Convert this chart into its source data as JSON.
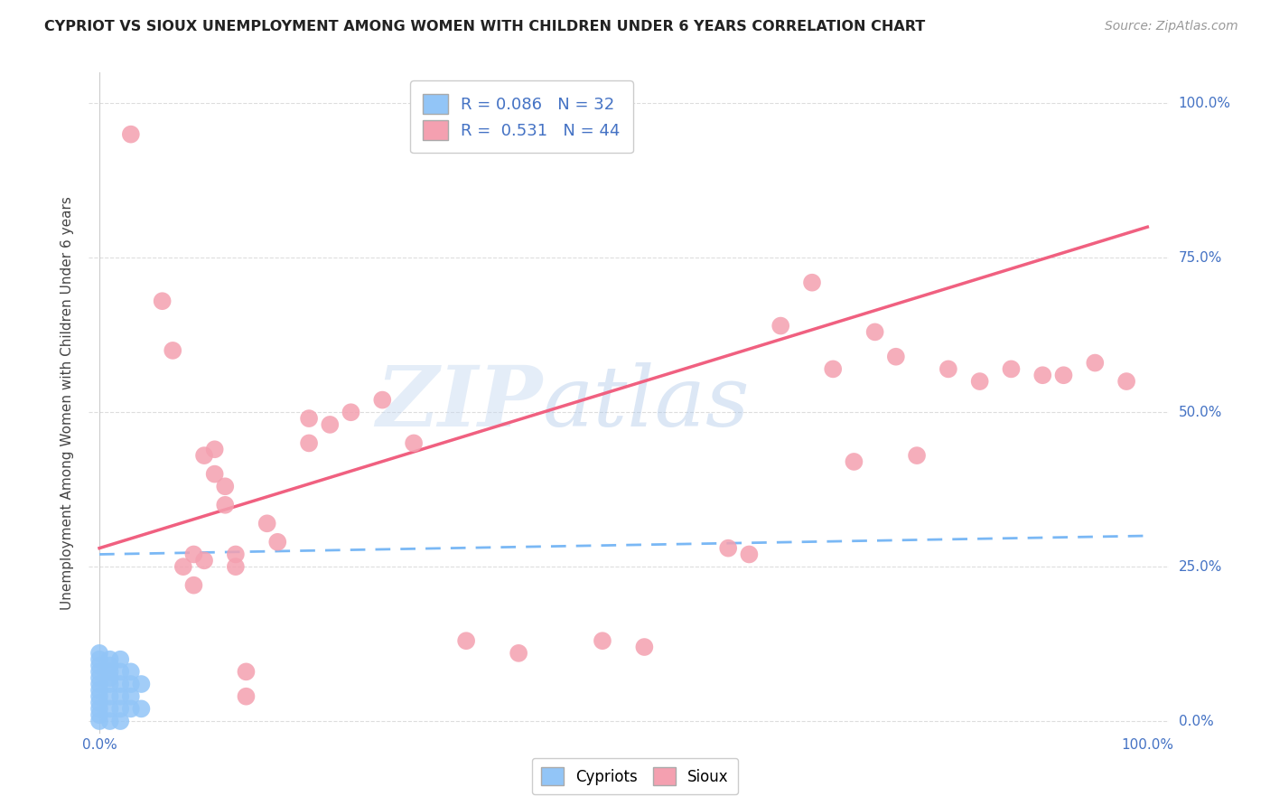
{
  "title": "CYPRIOT VS SIOUX UNEMPLOYMENT AMONG WOMEN WITH CHILDREN UNDER 6 YEARS CORRELATION CHART",
  "source": "Source: ZipAtlas.com",
  "ylabel": "Unemployment Among Women with Children Under 6 years",
  "cypriot_R": 0.086,
  "cypriot_N": 32,
  "sioux_R": 0.531,
  "sioux_N": 44,
  "cypriot_color": "#92C5F7",
  "sioux_color": "#F4A0B0",
  "cypriot_line_color": "#7AB8F5",
  "sioux_line_color": "#F06080",
  "axis_label_color": "#4472C4",
  "watermark_text": "ZIP",
  "watermark_text2": "atlas",
  "background_color": "#FFFFFF",
  "cypriot_points": [
    [
      0.0,
      0.0
    ],
    [
      0.0,
      0.01
    ],
    [
      0.0,
      0.02
    ],
    [
      0.0,
      0.03
    ],
    [
      0.0,
      0.04
    ],
    [
      0.0,
      0.05
    ],
    [
      0.0,
      0.06
    ],
    [
      0.0,
      0.07
    ],
    [
      0.0,
      0.08
    ],
    [
      0.0,
      0.09
    ],
    [
      0.0,
      0.1
    ],
    [
      0.0,
      0.11
    ],
    [
      0.01,
      0.0
    ],
    [
      0.01,
      0.02
    ],
    [
      0.01,
      0.04
    ],
    [
      0.01,
      0.06
    ],
    [
      0.01,
      0.07
    ],
    [
      0.01,
      0.08
    ],
    [
      0.01,
      0.09
    ],
    [
      0.01,
      0.1
    ],
    [
      0.02,
      0.0
    ],
    [
      0.02,
      0.02
    ],
    [
      0.02,
      0.04
    ],
    [
      0.02,
      0.06
    ],
    [
      0.02,
      0.08
    ],
    [
      0.02,
      0.1
    ],
    [
      0.03,
      0.02
    ],
    [
      0.03,
      0.04
    ],
    [
      0.03,
      0.06
    ],
    [
      0.03,
      0.08
    ],
    [
      0.04,
      0.02
    ],
    [
      0.04,
      0.06
    ]
  ],
  "sioux_points": [
    [
      0.03,
      0.95
    ],
    [
      0.06,
      0.68
    ],
    [
      0.07,
      0.6
    ],
    [
      0.08,
      0.25
    ],
    [
      0.09,
      0.27
    ],
    [
      0.09,
      0.22
    ],
    [
      0.1,
      0.43
    ],
    [
      0.1,
      0.26
    ],
    [
      0.11,
      0.44
    ],
    [
      0.11,
      0.4
    ],
    [
      0.12,
      0.38
    ],
    [
      0.12,
      0.35
    ],
    [
      0.13,
      0.27
    ],
    [
      0.13,
      0.25
    ],
    [
      0.14,
      0.08
    ],
    [
      0.14,
      0.04
    ],
    [
      0.16,
      0.32
    ],
    [
      0.17,
      0.29
    ],
    [
      0.2,
      0.49
    ],
    [
      0.2,
      0.45
    ],
    [
      0.22,
      0.48
    ],
    [
      0.24,
      0.5
    ],
    [
      0.27,
      0.52
    ],
    [
      0.3,
      0.45
    ],
    [
      0.35,
      0.13
    ],
    [
      0.4,
      0.11
    ],
    [
      0.48,
      0.13
    ],
    [
      0.52,
      0.12
    ],
    [
      0.6,
      0.28
    ],
    [
      0.62,
      0.27
    ],
    [
      0.65,
      0.64
    ],
    [
      0.68,
      0.71
    ],
    [
      0.7,
      0.57
    ],
    [
      0.72,
      0.42
    ],
    [
      0.74,
      0.63
    ],
    [
      0.76,
      0.59
    ],
    [
      0.78,
      0.43
    ],
    [
      0.81,
      0.57
    ],
    [
      0.84,
      0.55
    ],
    [
      0.87,
      0.57
    ],
    [
      0.9,
      0.56
    ],
    [
      0.92,
      0.56
    ],
    [
      0.95,
      0.58
    ],
    [
      0.98,
      0.55
    ]
  ],
  "sioux_line": [
    0.0,
    1.0,
    0.28,
    0.8
  ],
  "cypriot_line": [
    0.0,
    1.0,
    0.27,
    0.3
  ],
  "ylim": [
    -0.02,
    1.05
  ],
  "xlim": [
    -0.01,
    1.02
  ],
  "yticks": [
    0.0,
    0.25,
    0.5,
    0.75,
    1.0
  ],
  "ytick_labels": [
    "0.0%",
    "25.0%",
    "50.0%",
    "75.0%",
    "100.0%"
  ],
  "xticks": [
    0.0,
    1.0
  ],
  "xtick_labels": [
    "0.0%",
    "100.0%"
  ]
}
